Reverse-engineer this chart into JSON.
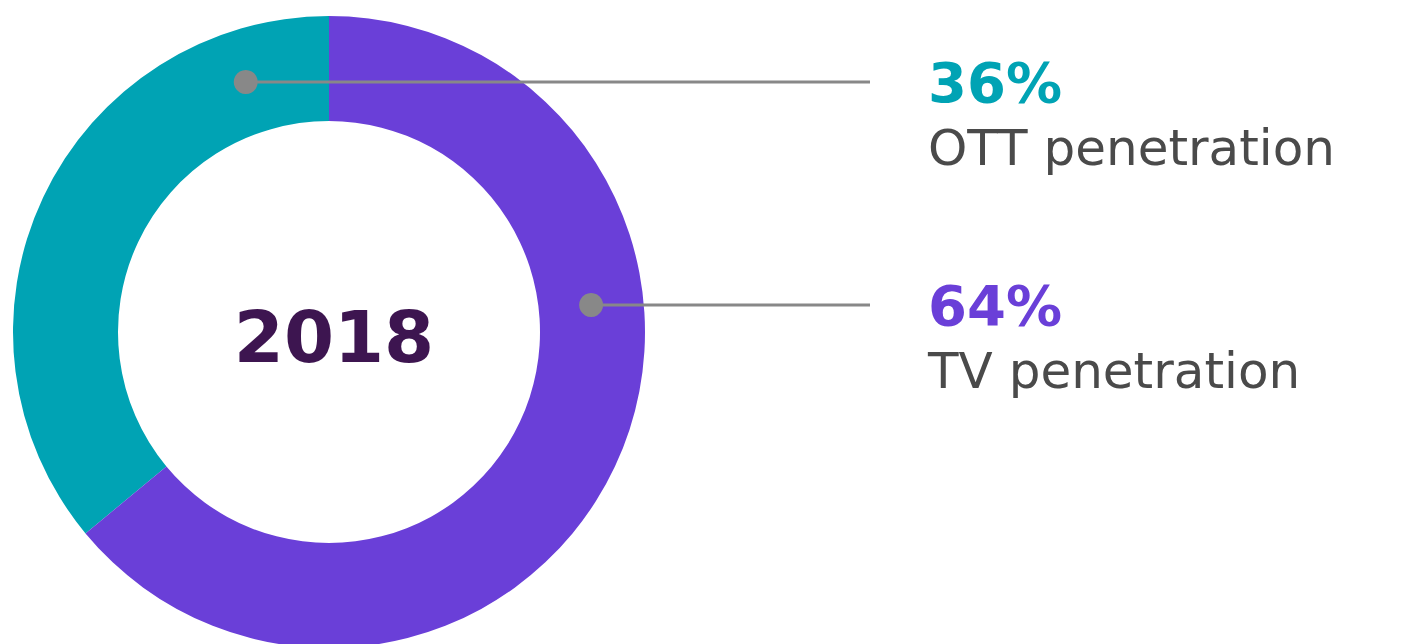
{
  "chart_data": {
    "type": "donut",
    "title": "2018",
    "categories": [
      "OTT penetration",
      "TV penetration"
    ],
    "values": [
      36,
      64
    ],
    "value_labels": [
      "36%",
      "64%"
    ],
    "colors": [
      "#00a3b4",
      "#6a3fd8"
    ],
    "legend": false
  }
}
